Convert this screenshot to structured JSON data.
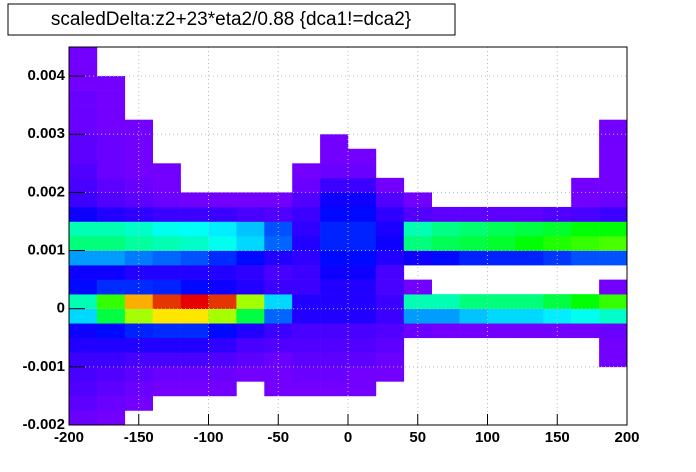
{
  "chart_data": {
    "type": "heatmap",
    "title": "scaledDelta:z2+23*eta2/0.88 {dca1!=dca2}",
    "xlim": [
      -200,
      200
    ],
    "xticks": [
      -200,
      -150,
      -100,
      -50,
      0,
      50,
      100,
      150,
      200
    ],
    "ylim": [
      -0.002,
      0.0045
    ],
    "yticks": [
      -0.002,
      -0.001,
      0,
      0.001,
      0.002,
      0.003,
      0.004
    ],
    "grid": true,
    "xbins": [
      -200,
      -180,
      -160,
      -140,
      -120,
      -100,
      -80,
      -60,
      -40,
      -20,
      0,
      20,
      40,
      60,
      80,
      100,
      120,
      140,
      160,
      180,
      200
    ],
    "ybins": [
      -0.002,
      -0.00175,
      -0.0015,
      -0.00125,
      -0.001,
      -0.00075,
      -0.0005,
      -0.00025,
      0,
      0.00025,
      0.0005,
      0.00075,
      0.001,
      0.00125,
      0.0015,
      0.00175,
      0.002,
      0.00225,
      0.0025,
      0.00275,
      0.003,
      0.00325,
      0.0035,
      0.00375,
      0.004,
      0.00425,
      0.0045
    ],
    "values": [
      [
        2,
        1,
        0,
        0,
        0,
        0,
        0,
        0,
        0,
        0,
        0,
        0,
        0,
        0,
        0,
        0,
        0,
        0,
        0,
        0
      ],
      [
        3,
        2,
        1,
        0,
        0,
        0,
        0,
        0,
        0,
        0,
        0,
        0,
        0,
        0,
        0,
        0,
        0,
        0,
        0,
        0
      ],
      [
        4,
        3,
        2,
        1,
        1,
        1,
        0,
        1,
        1,
        1,
        1,
        0,
        0,
        0,
        0,
        0,
        0,
        0,
        0,
        0
      ],
      [
        5,
        4,
        3,
        2,
        2,
        2,
        1,
        1,
        2,
        2,
        1,
        1,
        0,
        0,
        0,
        0,
        0,
        0,
        0,
        0
      ],
      [
        6,
        6,
        5,
        5,
        5,
        4,
        3,
        2,
        3,
        3,
        3,
        2,
        0,
        0,
        0,
        0,
        0,
        0,
        0,
        1
      ],
      [
        8,
        8,
        8,
        8,
        8,
        7,
        5,
        4,
        4,
        4,
        4,
        3,
        0,
        0,
        0,
        0,
        0,
        0,
        0,
        1
      ],
      [
        10,
        12,
        14,
        15,
        15,
        12,
        8,
        6,
        5,
        5,
        5,
        4,
        2,
        1,
        1,
        1,
        1,
        1,
        1,
        2
      ],
      [
        30,
        50,
        70,
        80,
        80,
        70,
        50,
        20,
        8,
        8,
        8,
        6,
        25,
        25,
        28,
        30,
        30,
        32,
        35,
        38
      ],
      [
        40,
        60,
        85,
        95,
        100,
        95,
        70,
        30,
        8,
        8,
        8,
        6,
        40,
        40,
        45,
        45,
        45,
        50,
        55,
        60
      ],
      [
        12,
        15,
        15,
        14,
        12,
        10,
        8,
        6,
        6,
        8,
        8,
        5,
        1,
        0,
        0,
        0,
        0,
        0,
        0,
        1
      ],
      [
        10,
        10,
        8,
        8,
        8,
        8,
        7,
        5,
        6,
        10,
        10,
        5,
        0,
        0,
        0,
        0,
        0,
        0,
        0,
        0
      ],
      [
        25,
        25,
        22,
        20,
        18,
        15,
        12,
        8,
        7,
        12,
        12,
        8,
        10,
        12,
        14,
        14,
        14,
        16,
        18,
        18
      ],
      [
        45,
        45,
        42,
        40,
        38,
        35,
        30,
        20,
        8,
        14,
        14,
        10,
        45,
        48,
        50,
        52,
        55,
        58,
        60,
        62
      ],
      [
        40,
        40,
        38,
        35,
        34,
        32,
        28,
        18,
        7,
        14,
        14,
        9,
        40,
        44,
        46,
        48,
        50,
        52,
        55,
        55
      ],
      [
        10,
        8,
        7,
        6,
        6,
        6,
        5,
        4,
        6,
        12,
        12,
        7,
        4,
        3,
        3,
        3,
        3,
        4,
        5,
        6
      ],
      [
        6,
        4,
        3,
        2,
        1,
        1,
        1,
        1,
        4,
        10,
        10,
        4,
        1,
        0,
        0,
        0,
        0,
        0,
        1,
        2
      ],
      [
        5,
        3,
        2,
        1,
        0,
        0,
        0,
        0,
        2,
        6,
        6,
        1,
        0,
        0,
        0,
        0,
        0,
        0,
        1,
        1
      ],
      [
        4,
        2,
        1,
        1,
        0,
        0,
        0,
        0,
        1,
        2,
        2,
        0,
        0,
        0,
        0,
        0,
        0,
        0,
        0,
        1
      ],
      [
        3,
        2,
        1,
        0,
        0,
        0,
        0,
        0,
        0,
        1,
        1,
        0,
        0,
        0,
        0,
        0,
        0,
        0,
        0,
        1
      ],
      [
        3,
        2,
        1,
        0,
        0,
        0,
        0,
        0,
        0,
        1,
        0,
        0,
        0,
        0,
        0,
        0,
        0,
        0,
        0,
        1
      ],
      [
        2,
        1,
        1,
        0,
        0,
        0,
        0,
        0,
        0,
        0,
        0,
        0,
        0,
        0,
        0,
        0,
        0,
        0,
        0,
        1
      ],
      [
        2,
        1,
        0,
        0,
        0,
        0,
        0,
        0,
        0,
        0,
        0,
        0,
        0,
        0,
        0,
        0,
        0,
        0,
        0,
        0
      ],
      [
        2,
        1,
        0,
        0,
        0,
        0,
        0,
        0,
        0,
        0,
        0,
        0,
        0,
        0,
        0,
        0,
        0,
        0,
        0,
        0
      ],
      [
        1,
        1,
        0,
        0,
        0,
        0,
        0,
        0,
        0,
        0,
        0,
        0,
        0,
        0,
        0,
        0,
        0,
        0,
        0,
        0
      ],
      [
        1,
        0,
        0,
        0,
        0,
        0,
        0,
        0,
        0,
        0,
        0,
        0,
        0,
        0,
        0,
        0,
        0,
        0,
        0,
        0
      ],
      [
        1,
        0,
        0,
        0,
        0,
        0,
        0,
        0,
        0,
        0,
        0,
        0,
        0,
        0,
        0,
        0,
        0,
        0,
        0,
        0
      ]
    ]
  }
}
